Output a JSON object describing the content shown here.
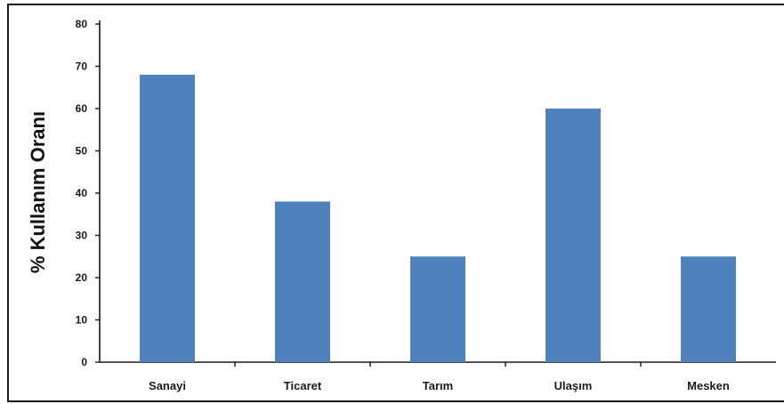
{
  "chart_data": {
    "type": "bar",
    "title": "",
    "xlabel": "",
    "ylabel": "% Kullanım Oranı",
    "categories": [
      "Sanayi",
      "Ticaret",
      "Tarım",
      "Ulaşım",
      "Mesken"
    ],
    "values": [
      68,
      38,
      25,
      60,
      25
    ],
    "ylim": [
      0,
      80
    ],
    "yticks": [
      "0",
      "10",
      "20",
      "30",
      "40",
      "50",
      "60",
      "70",
      "80"
    ],
    "bar_color": "#4F81BD",
    "grid": false,
    "legend": "none"
  }
}
